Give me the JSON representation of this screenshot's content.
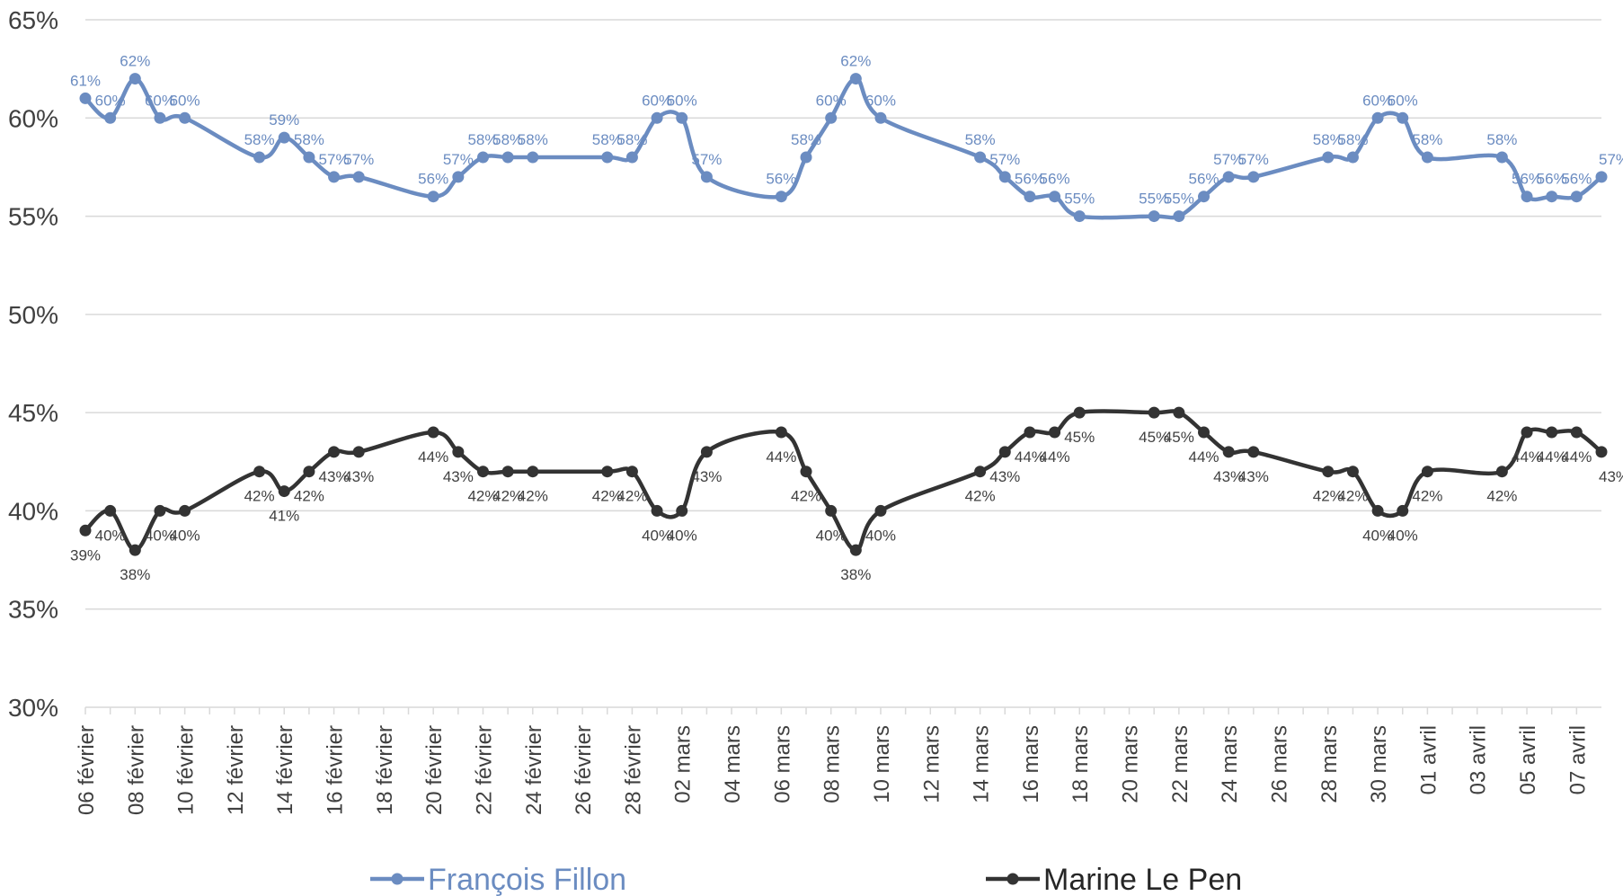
{
  "chart_data": {
    "type": "line",
    "title": "",
    "xlabel": "",
    "ylabel": "",
    "ylim": [
      30,
      65
    ],
    "yticks": [
      "30%",
      "35%",
      "40%",
      "45%",
      "50%",
      "55%",
      "60%",
      "65%"
    ],
    "grid": true,
    "legend": "bottom",
    "date_start": "2017-02-06",
    "date_end": "2017-04-07",
    "xtick_labels": [
      "06 février",
      "08 février",
      "10 février",
      "12 février",
      "14 février",
      "16 février",
      "18 février",
      "20 février",
      "22 février",
      "24 février",
      "26 février",
      "28 février",
      "02 mars",
      "04 mars",
      "06 mars",
      "08 mars",
      "10 mars",
      "12 mars",
      "14 mars",
      "16 mars",
      "18 mars",
      "20 mars",
      "22 mars",
      "24 mars",
      "26 mars",
      "28 mars",
      "30 mars",
      "01 avril",
      "03 avril",
      "05 avril",
      "07 avril"
    ],
    "x": [
      "2017-02-06",
      "2017-02-07",
      "2017-02-08",
      "2017-02-09",
      "2017-02-10",
      "2017-02-13",
      "2017-02-14",
      "2017-02-15",
      "2017-02-16",
      "2017-02-17",
      "2017-02-20",
      "2017-02-21",
      "2017-02-22",
      "2017-02-23",
      "2017-02-24",
      "2017-02-27",
      "2017-02-28",
      "2017-03-01",
      "2017-03-02",
      "2017-03-03",
      "2017-03-06",
      "2017-03-07",
      "2017-03-08",
      "2017-03-09",
      "2017-03-10",
      "2017-03-14",
      "2017-03-15",
      "2017-03-16",
      "2017-03-17",
      "2017-03-18",
      "2017-03-21",
      "2017-03-22",
      "2017-03-23",
      "2017-03-24",
      "2017-03-25",
      "2017-03-28",
      "2017-03-29",
      "2017-03-30",
      "2017-03-31",
      "2017-04-01",
      "2017-04-04",
      "2017-04-05",
      "2017-04-06",
      "2017-04-07",
      "2017-04-08"
    ],
    "series": [
      {
        "name": "François Fillon",
        "color": "#6b8cc1",
        "values": [
          61,
          60,
          62,
          60,
          60,
          58,
          59,
          58,
          57,
          57,
          56,
          57,
          58,
          58,
          58,
          58,
          58,
          60,
          60,
          57,
          56,
          58,
          60,
          62,
          60,
          58,
          57,
          56,
          56,
          55,
          55,
          55,
          56,
          57,
          57,
          58,
          58,
          60,
          60,
          58,
          58,
          56,
          56,
          56,
          57
        ],
        "labels": [
          "61%",
          "60%",
          "62%",
          "60%",
          "60%",
          "58%",
          "59%",
          "58%",
          "57%",
          "57%",
          "56%",
          "57%",
          "58%",
          "58%",
          "58%",
          "58%",
          "58%",
          "60%",
          "60%",
          "57%",
          "56%",
          "58%",
          "60%",
          "62%",
          "60%",
          "58%",
          "57%",
          "56%",
          "56%",
          "55%",
          "55%",
          "55%",
          "56%",
          "57%",
          "57%",
          "58%",
          "58%",
          "60%",
          "60%",
          "58%",
          "58%",
          "56%",
          "56%",
          "56%",
          "57%"
        ]
      },
      {
        "name": "Marine Le Pen",
        "color": "#333333",
        "values": [
          39,
          40,
          38,
          40,
          40,
          42,
          41,
          42,
          43,
          43,
          44,
          43,
          42,
          42,
          42,
          42,
          42,
          40,
          40,
          43,
          44,
          42,
          40,
          38,
          40,
          42,
          43,
          44,
          44,
          45,
          45,
          45,
          44,
          43,
          43,
          42,
          42,
          40,
          40,
          42,
          42,
          44,
          44,
          44,
          43
        ],
        "labels": [
          "39%",
          "40%",
          "38%",
          "40%",
          "40%",
          "42%",
          "41%",
          "42%",
          "43%",
          "43%",
          "44%",
          "43%",
          "42%",
          "42%",
          "42%",
          "42%",
          "42%",
          "40%",
          "40%",
          "43%",
          "44%",
          "42%",
          "40%",
          "38%",
          "40%",
          "42%",
          "43%",
          "44%",
          "44%",
          "45%",
          "45%",
          "45%",
          "44%",
          "43%",
          "43%",
          "42%",
          "42%",
          "40%",
          "40%",
          "42%",
          "42%",
          "44%",
          "44%",
          "44%",
          "43%"
        ]
      }
    ]
  }
}
